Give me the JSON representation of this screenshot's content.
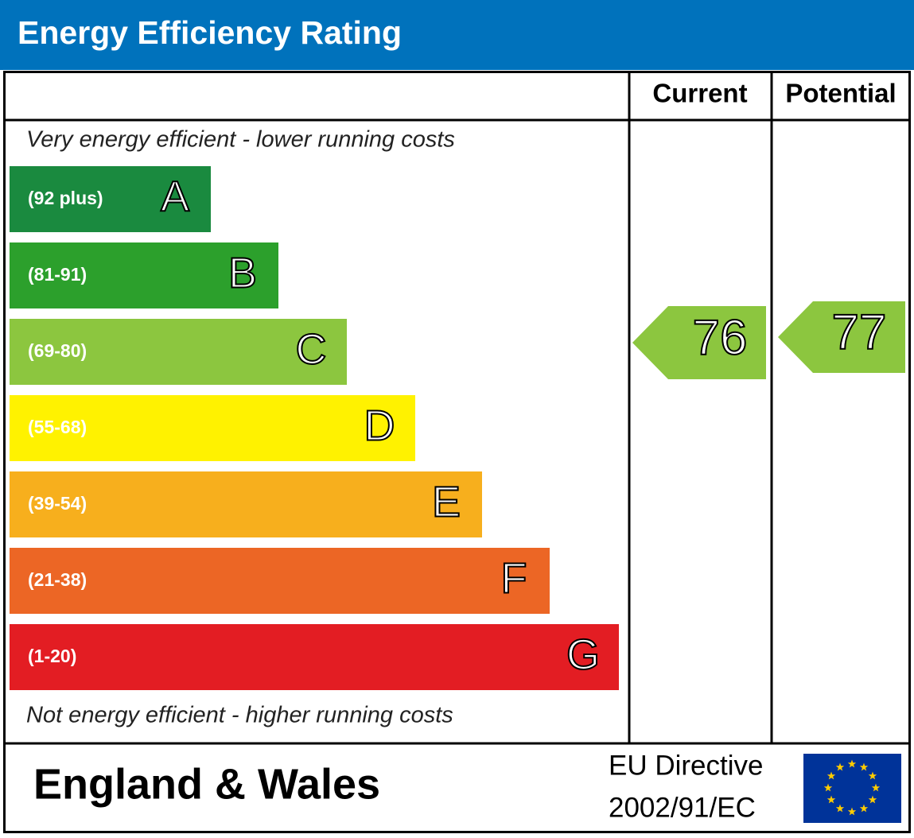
{
  "header": {
    "title": "Energy Efficiency Rating"
  },
  "columns": {
    "current": "Current",
    "potential": "Potential"
  },
  "top_note": "Very energy efficient - lower running costs",
  "bands": [
    {
      "range": "(92 plus)",
      "letter": "A"
    },
    {
      "range": "(81-91)",
      "letter": "B"
    },
    {
      "range": "(69-80)",
      "letter": "C"
    },
    {
      "range": "(55-68)",
      "letter": "D"
    },
    {
      "range": "(39-54)",
      "letter": "E"
    },
    {
      "range": "(21-38)",
      "letter": "F"
    },
    {
      "range": "(1-20)",
      "letter": "G"
    }
  ],
  "bottom_note": "Not energy efficient - higher running costs",
  "ratings": {
    "current": 76,
    "potential": 77
  },
  "footer": {
    "region": "England & Wales",
    "directive": "EU Directive",
    "directive_number": "2002/91/EC"
  }
}
